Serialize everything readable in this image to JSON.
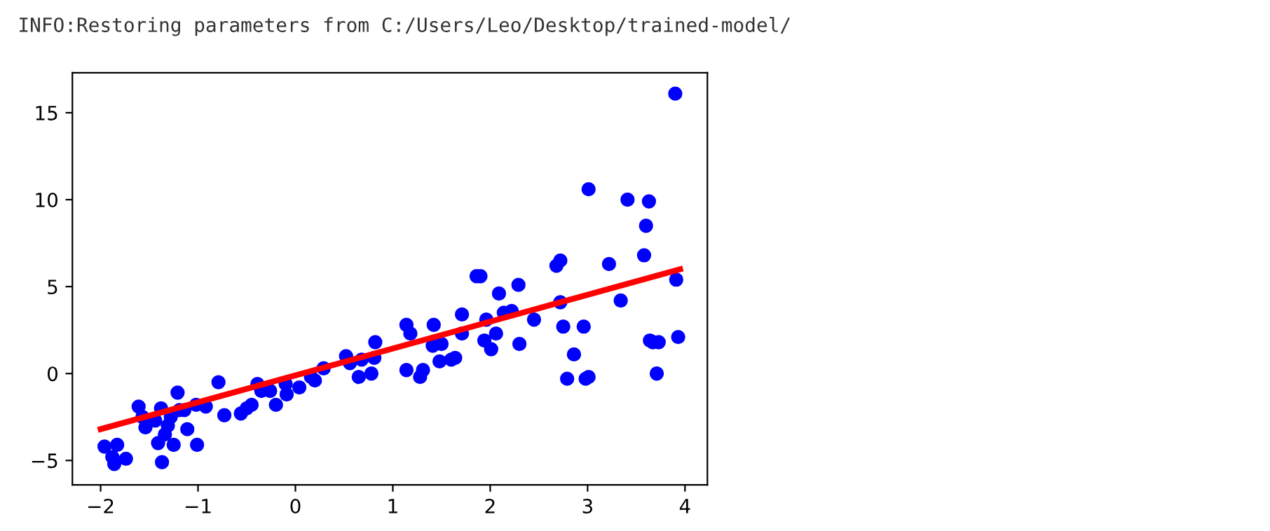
{
  "chart_data": {
    "type": "scatter",
    "annotations": [
      "INFO:Restoring parameters from C:/Users/Leo/Desktop/trained-model/"
    ],
    "xlim": [
      -2.29,
      4.23
    ],
    "ylim": [
      -6.4,
      17.3
    ],
    "xticks": [
      {
        "value": -2,
        "label": "−2"
      },
      {
        "value": -1,
        "label": "−1"
      },
      0,
      1,
      2,
      3,
      4
    ],
    "yticks": [
      {
        "value": -5,
        "label": "−5"
      },
      0,
      5,
      10,
      15
    ],
    "grid": false,
    "series": [
      {
        "type": "scatter",
        "color": "#0000ff",
        "marker": "circle",
        "x": [
          -1.96,
          -1.88,
          -1.83,
          -1.86,
          -1.74,
          -1.61,
          -1.57,
          -1.54,
          -1.44,
          -1.38,
          -1.41,
          -1.37,
          -1.34,
          -1.31,
          -1.28,
          -1.25,
          -1.21,
          -1.19,
          -1.14,
          -1.11,
          -1.02,
          -1.01,
          -0.92,
          -0.79,
          -0.73,
          -0.56,
          -0.5,
          -0.45,
          -0.39,
          -0.35,
          -0.26,
          -0.2,
          -0.1,
          -0.09,
          0.04,
          0.16,
          0.2,
          0.29,
          0.52,
          0.56,
          0.65,
          0.68,
          0.78,
          0.82,
          0.81,
          1.14,
          1.14,
          1.18,
          1.28,
          1.31,
          1.41,
          1.42,
          1.48,
          1.5,
          1.6,
          1.64,
          1.71,
          1.71,
          1.86,
          1.9,
          1.94,
          1.96,
          2.01,
          2.06,
          2.09,
          2.14,
          2.22,
          2.29,
          2.3,
          2.45,
          2.68,
          2.72,
          2.75,
          2.79,
          2.86,
          2.96,
          2.98,
          3.01,
          3.22,
          3.34,
          3.41,
          3.58,
          3.6,
          3.63,
          3.64,
          3.67,
          3.71,
          3.73,
          3.91,
          3.93,
          3.9,
          3.01,
          2.72
        ],
        "values": [
          -4.2,
          -4.8,
          -4.1,
          -5.2,
          -4.9,
          -1.9,
          -2.5,
          -3.1,
          -2.7,
          -2.0,
          -4.0,
          -5.1,
          -3.5,
          -3.0,
          -2.5,
          -4.1,
          -1.1,
          -2.1,
          -2.1,
          -3.2,
          -1.8,
          -4.1,
          -1.9,
          -0.5,
          -2.4,
          -2.3,
          -2.0,
          -1.8,
          -0.6,
          -1.0,
          -1.0,
          -1.8,
          -0.6,
          -1.2,
          -0.8,
          -0.2,
          -0.4,
          0.3,
          1.0,
          0.6,
          -0.2,
          0.8,
          0,
          1.8,
          0.9,
          2.8,
          0.2,
          2.3,
          -0.2,
          0.2,
          1.6,
          2.8,
          0.7,
          1.7,
          0.8,
          0.9,
          3.4,
          2.3,
          5.6,
          5.6,
          1.9,
          3.1,
          1.4,
          2.3,
          4.6,
          3.5,
          3.6,
          5.1,
          1.7,
          3.1,
          6.2,
          6.5,
          2.7,
          -0.3,
          1.1,
          2.7,
          -0.3,
          10.6,
          6.3,
          4.2,
          10.0,
          6.8,
          8.5,
          9.9,
          1.9,
          1.8,
          0.0,
          1.8,
          5.4,
          2.1,
          16.1,
          -0.2,
          4.1
        ]
      },
      {
        "type": "line",
        "color": "#ff0000",
        "marker": "none",
        "line_style": "solid",
        "x": [
          -2,
          3.95
        ],
        "values": [
          -3.2,
          6.0
        ]
      }
    ]
  }
}
